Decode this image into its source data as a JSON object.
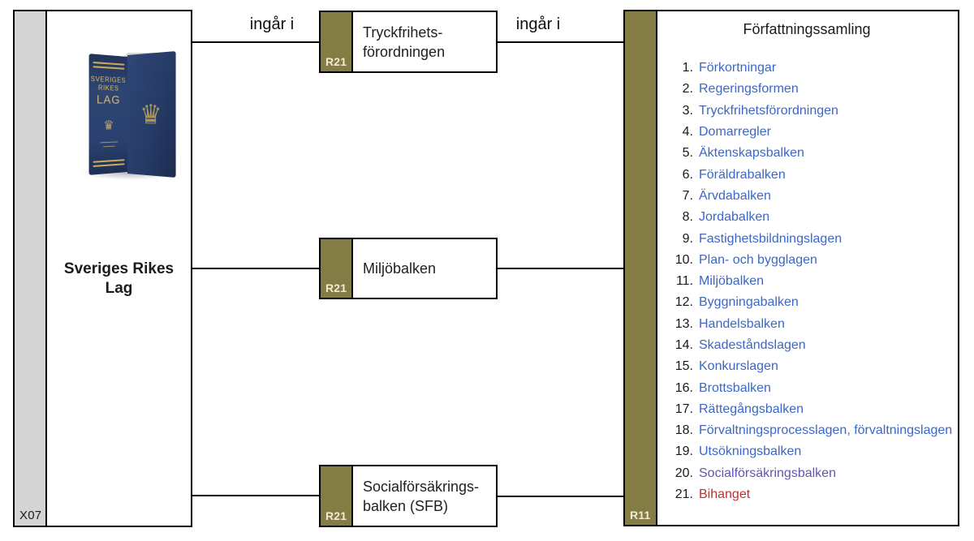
{
  "relation_label": "ingår i",
  "source": {
    "id_label": "X07",
    "title": "Sveriges Rikes Lag",
    "book": {
      "spine_lines": [
        "SVERIGES",
        "RIKES"
      ],
      "spine_main": "LAG"
    }
  },
  "middle_nodes": [
    {
      "tag": "R21",
      "lines": [
        "Tryckfrihets-",
        "förordningen"
      ]
    },
    {
      "tag": "R21",
      "lines": [
        "Miljöbalken"
      ]
    },
    {
      "tag": "R21",
      "lines": [
        "Socialförsäkrings-",
        "balken (SFB)"
      ]
    }
  ],
  "target": {
    "tag": "R11",
    "title": "Författningssamling",
    "items": [
      {
        "num": "1.",
        "label": "Förkortningar",
        "color": "link_blue"
      },
      {
        "num": "2.",
        "label": "Regeringsformen",
        "color": "link_blue"
      },
      {
        "num": "3.",
        "label": "Tryckfrihetsförordningen",
        "color": "link_blue"
      },
      {
        "num": "4.",
        "label": "Domarregler",
        "color": "link_blue"
      },
      {
        "num": "5.",
        "label": "Äktenskapsbalken",
        "color": "link_blue"
      },
      {
        "num": "6.",
        "label": "Föräldrabalken",
        "color": "link_blue"
      },
      {
        "num": "7.",
        "label": "Ärvdabalken",
        "color": "link_blue"
      },
      {
        "num": "8.",
        "label": "Jordabalken",
        "color": "link_blue"
      },
      {
        "num": "9.",
        "label": "Fastighetsbildningslagen",
        "color": "link_blue"
      },
      {
        "num": "10.",
        "label": "Plan- och bygglagen",
        "color": "link_blue"
      },
      {
        "num": "11.",
        "label": "Miljöbalken",
        "color": "link_blue"
      },
      {
        "num": "12.",
        "label": "Byggningabalken",
        "color": "link_blue"
      },
      {
        "num": "13.",
        "label": "Handelsbalken",
        "color": "link_blue"
      },
      {
        "num": "14.",
        "label": "Skadeståndslagen",
        "color": "link_blue"
      },
      {
        "num": "15.",
        "label": "Konkurslagen",
        "color": "link_blue"
      },
      {
        "num": "16.",
        "label": "Brottsbalken",
        "color": "link_blue"
      },
      {
        "num": "17.",
        "label": "Rättegångsbalken",
        "color": "link_blue"
      },
      {
        "num": "18.",
        "label": "Förvaltningsprocesslagen, förvaltningslagen",
        "color": "link_blue"
      },
      {
        "num": "19.",
        "label": "Utsökningsbalken",
        "color": "link_blue"
      },
      {
        "num": "20.",
        "label": "Socialförsäkringsbalken",
        "color": "visited_purple"
      },
      {
        "num": "21.",
        "label": "Bihanget",
        "color": "alert_red"
      }
    ]
  },
  "colors": {
    "link_blue": "#3A67C8",
    "visited_purple": "#6156AE",
    "alert_red": "#C2302A",
    "olive_tab": "#847C45",
    "gray_strip": "#D4D4D4"
  }
}
